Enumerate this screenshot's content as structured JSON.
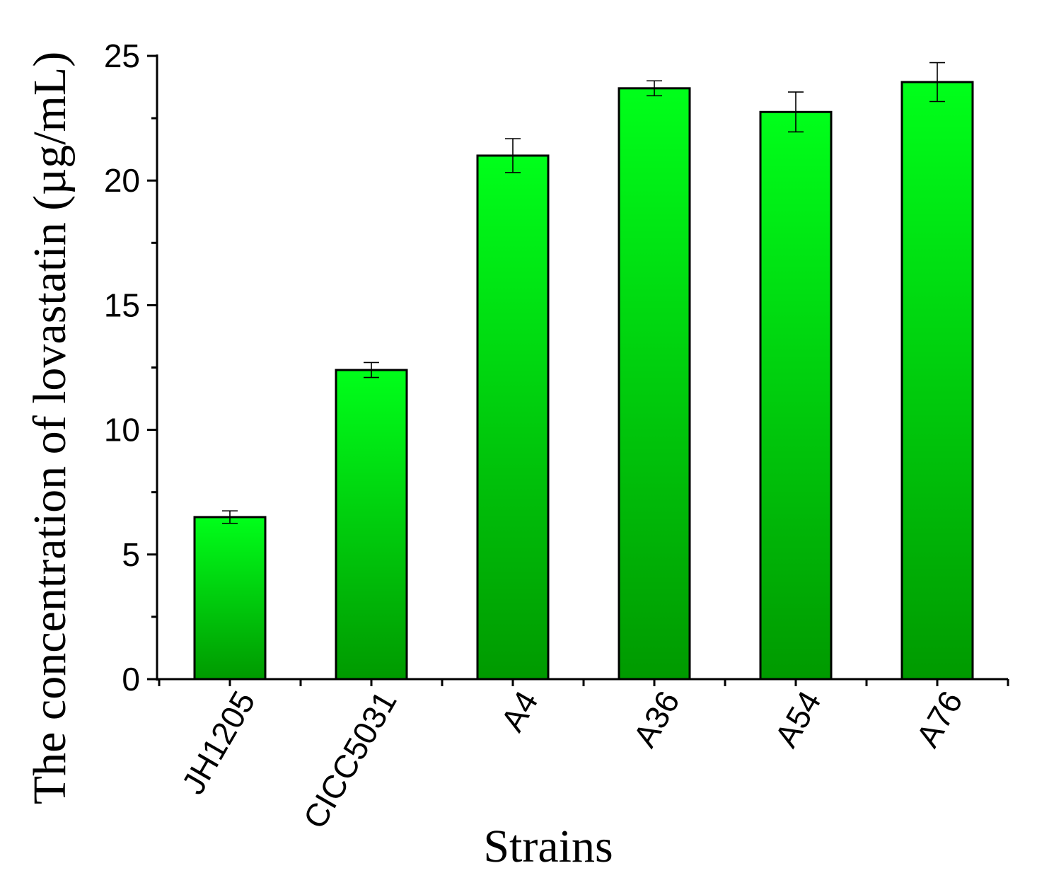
{
  "chart_data": {
    "type": "bar",
    "xlabel": "Strains",
    "ylabel": "The concentration of lovastatin (µg/mL)",
    "categories": [
      "JH1205",
      "CICC5031",
      "A4",
      "A36",
      "A54",
      "A76"
    ],
    "values": [
      6.5,
      12.4,
      21.0,
      23.7,
      22.75,
      23.95
    ],
    "errors": [
      0.25,
      0.3,
      0.68,
      0.3,
      0.8,
      0.78
    ],
    "ylim": [
      0,
      25
    ],
    "yticks": [
      0,
      5,
      10,
      15,
      20,
      25
    ],
    "ytick_labels": [
      "0",
      "5",
      "10",
      "15",
      "20",
      "25"
    ],
    "grid": false,
    "bar_color_top": "#00ff1a",
    "bar_color_bottom": "#009a00"
  }
}
